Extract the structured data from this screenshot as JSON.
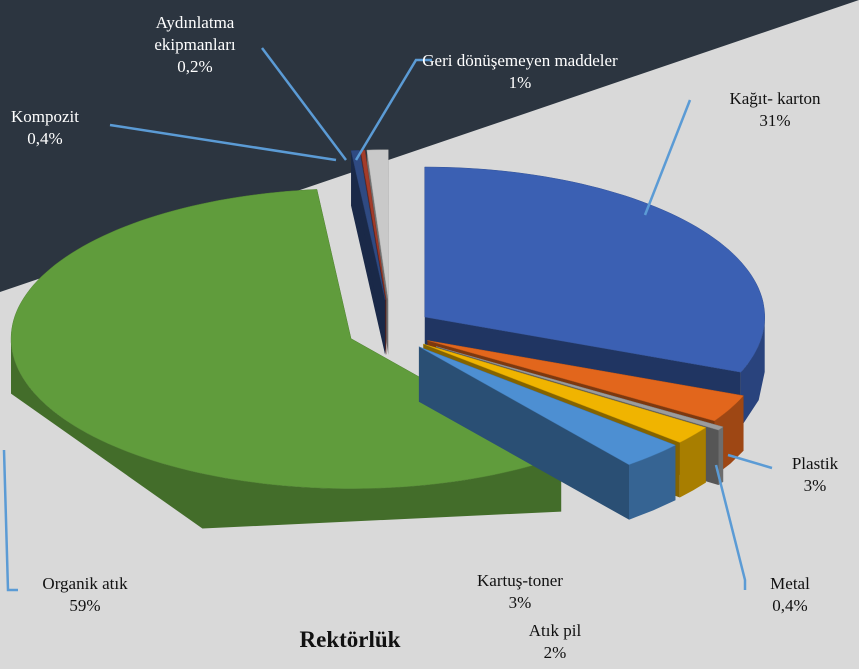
{
  "chart_data": {
    "type": "pie",
    "title": "Rektörlük",
    "categories": [
      "Kağıt- karton",
      "Plastik",
      "Metal",
      "Atık pil",
      "Kartuş-toner",
      "Organik atık",
      "Kompozit",
      "Aydınlatma ekipmanları",
      "Geri dönüşemeyen maddeler"
    ],
    "values": [
      31,
      3,
      0.4,
      2,
      3,
      59,
      0.4,
      0.2,
      1
    ],
    "value_labels": [
      "31%",
      "3%",
      "0,4%",
      "2%",
      "3%",
      "59%",
      "0,4%",
      "0,2%",
      "1%"
    ],
    "colors": [
      "#3b60b3",
      "#e2661c",
      "#9c9c9c",
      "#f0b400",
      "#4d8fd2",
      "#609c3c",
      "#2f4a82",
      "#a33c2a",
      "#c9c9c9"
    ]
  }
}
